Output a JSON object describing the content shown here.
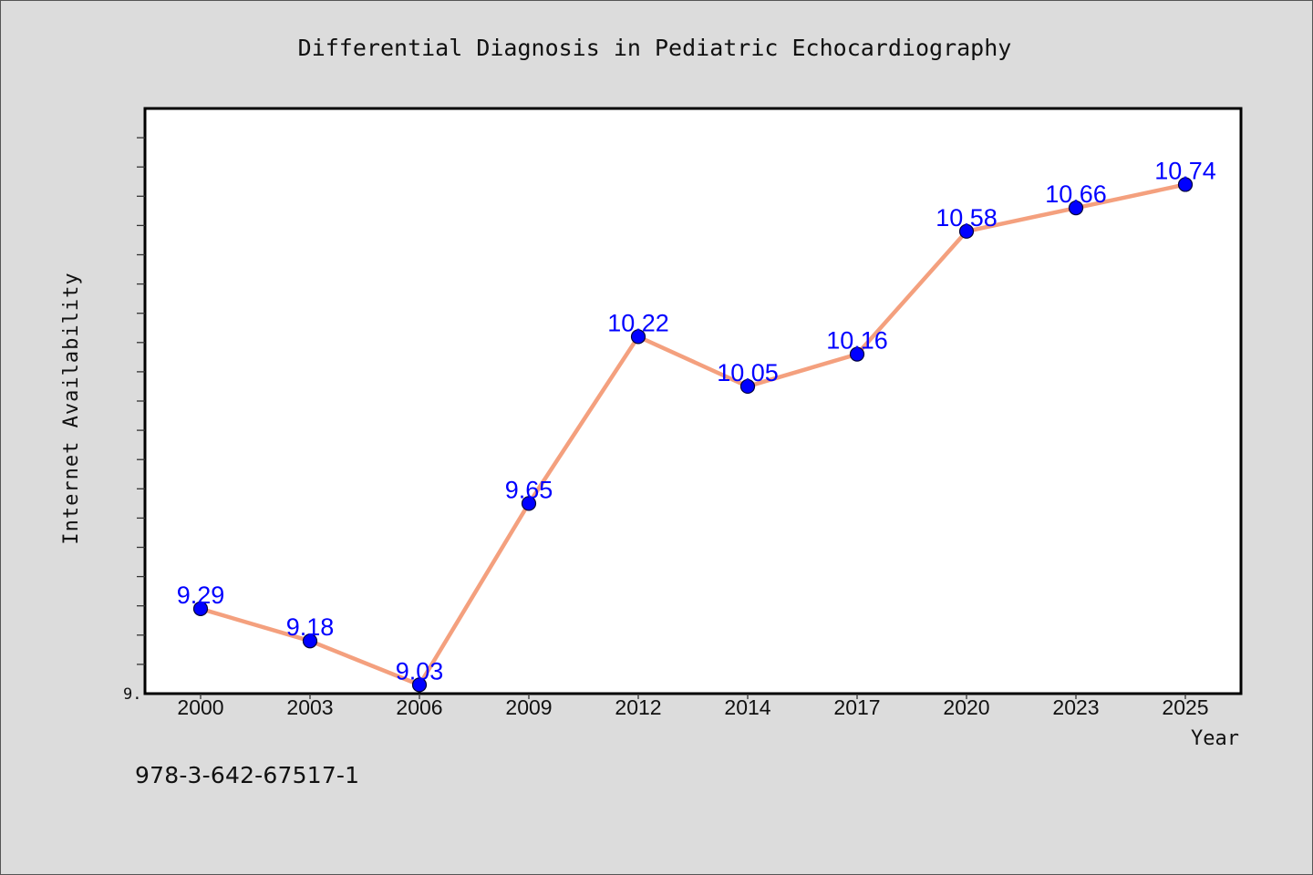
{
  "chart_data": {
    "type": "line",
    "title": "Differential Diagnosis in Pediatric Echocardiography",
    "xlabel": "Year",
    "ylabel": "Internet Availability",
    "categories": [
      "2000",
      "2003",
      "2006",
      "2009",
      "2012",
      "2014",
      "2017",
      "2020",
      "2023",
      "2025"
    ],
    "series": [
      {
        "values": [
          9.29,
          9.18,
          9.03,
          9.65,
          10.22,
          10.05,
          10.16,
          10.58,
          10.66,
          10.74
        ],
        "data_labels": [
          "9.29",
          "9.18",
          "9.03",
          "9.65",
          "10.22",
          "10.05",
          "10.16",
          "10.58",
          "10.66",
          "10.74"
        ]
      }
    ],
    "ylim": [
      9.0,
      11.0
    ],
    "y_tick_label": "9.",
    "grid": false,
    "legend": "none",
    "colors": {
      "line": "#f4a07e",
      "marker": "#0000ff",
      "label": "#0000ff",
      "background": "#dcdcdc",
      "plot_background": "#ffffff"
    }
  },
  "footer": {
    "isbn": "978-3-642-67517-1"
  }
}
